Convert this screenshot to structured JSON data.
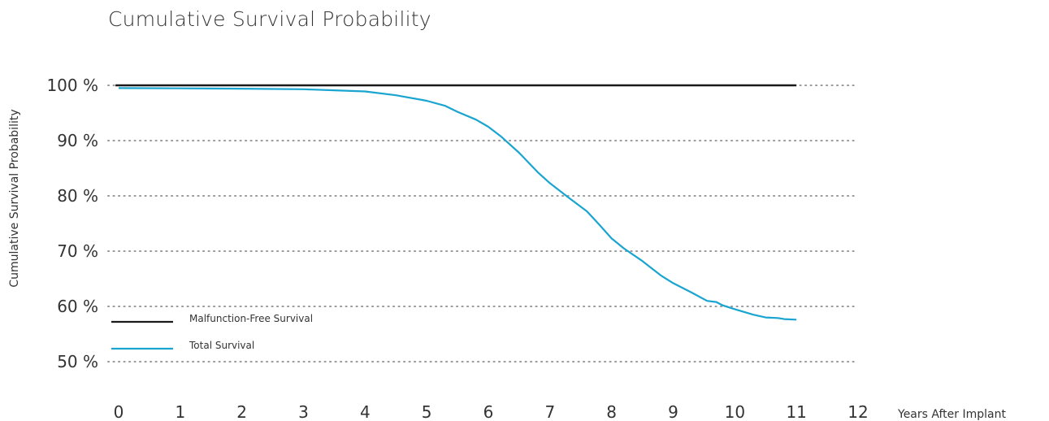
{
  "chart_data": {
    "type": "line",
    "title": "Cumulative Survival Probability",
    "xlabel": "Years After Implant",
    "ylabel": "Cumulative Survival Probability",
    "xlim": [
      0,
      12
    ],
    "ylim": [
      50,
      100
    ],
    "x_ticks": [
      "0",
      "1",
      "2",
      "3",
      "4",
      "5",
      "6",
      "7",
      "8",
      "9",
      "10",
      "11",
      "12"
    ],
    "y_ticks": [
      "100 %",
      "90 %",
      "80 %",
      "70 %",
      "60 %",
      "50 %"
    ],
    "grid": "horizontal dotted",
    "legend_position": "bottom-left",
    "series": [
      {
        "name": "Malfunction-Free Survival",
        "color": "#1a1a1a",
        "points": [
          [
            0,
            100
          ],
          [
            11,
            100
          ]
        ]
      },
      {
        "name": "Total Survival",
        "color": "#19a5d0",
        "points": [
          [
            0,
            99.5
          ],
          [
            1,
            99.45
          ],
          [
            2,
            99.4
          ],
          [
            3,
            99.3
          ],
          [
            3.5,
            99.1
          ],
          [
            4,
            98.9
          ],
          [
            4.5,
            98.2
          ],
          [
            5,
            97.2
          ],
          [
            5.3,
            96.3
          ],
          [
            5.5,
            95.2
          ],
          [
            5.8,
            93.8
          ],
          [
            6,
            92.5
          ],
          [
            6.2,
            90.8
          ],
          [
            6.5,
            87.8
          ],
          [
            6.8,
            84.3
          ],
          [
            7,
            82.3
          ],
          [
            7.3,
            79.7
          ],
          [
            7.6,
            77.2
          ],
          [
            7.8,
            74.8
          ],
          [
            8,
            72.3
          ],
          [
            8.2,
            70.5
          ],
          [
            8.5,
            68.2
          ],
          [
            8.8,
            65.6
          ],
          [
            9,
            64.2
          ],
          [
            9.3,
            62.5
          ],
          [
            9.55,
            61.0
          ],
          [
            9.7,
            60.8
          ],
          [
            9.8,
            60.2
          ],
          [
            10,
            59.5
          ],
          [
            10.3,
            58.5
          ],
          [
            10.5,
            58.0
          ],
          [
            10.7,
            57.9
          ],
          [
            10.8,
            57.7
          ],
          [
            11,
            57.6
          ]
        ]
      }
    ]
  }
}
